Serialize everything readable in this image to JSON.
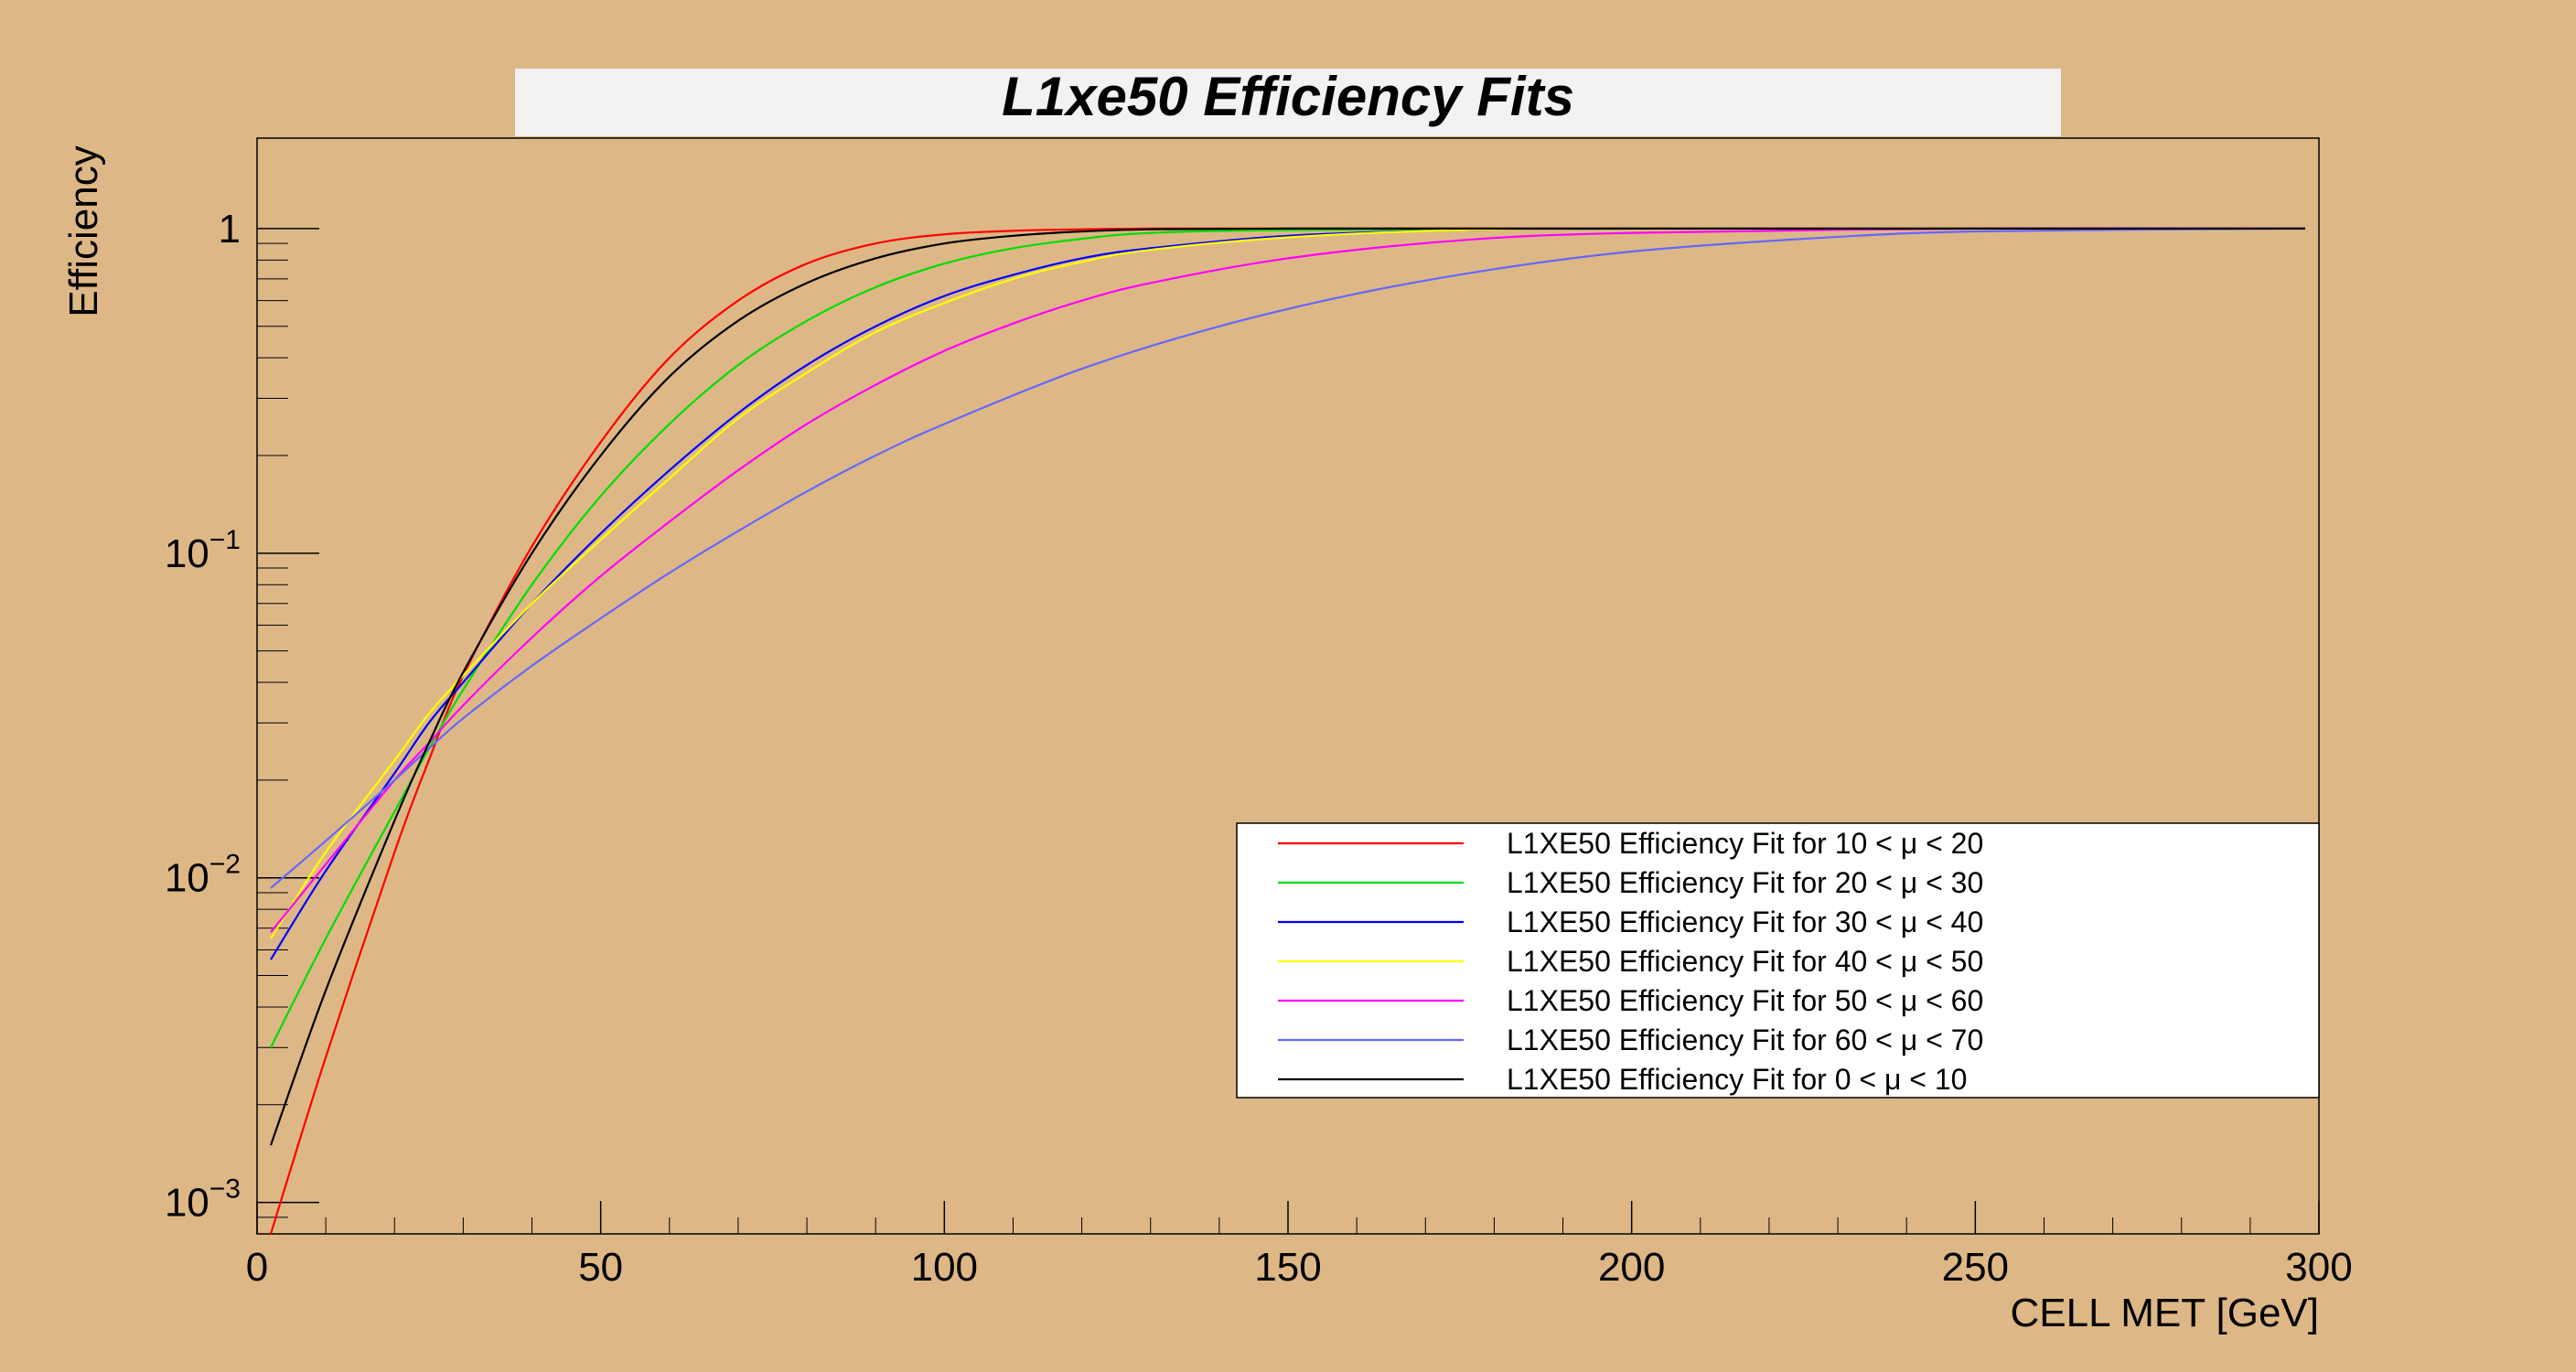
{
  "chart_data": {
    "type": "line",
    "title": "L1xe50 Efficiency Fits",
    "xlabel": "CELL MET [GeV]",
    "ylabel": "Efficiency",
    "xlim": [
      0,
      300
    ],
    "ylim": [
      0.0008,
      1.9
    ],
    "y_scale": "log",
    "x_ticks": [
      "0",
      "50",
      "100",
      "150",
      "200",
      "250",
      "300"
    ],
    "y_ticks": [
      {
        "value": 1,
        "base": "1",
        "exp": ""
      },
      {
        "value": 0.1,
        "base": "10",
        "exp": "−1"
      },
      {
        "value": 0.01,
        "base": "10",
        "exp": "−2"
      },
      {
        "value": 0.001,
        "base": "10",
        "exp": "−3"
      }
    ],
    "legend_position": "lower-right",
    "grid": false,
    "series": [
      {
        "name": "L1XE50 Efficiency Fit for 10 < μ < 20",
        "color": "#ff0000",
        "x": [
          2,
          10,
          20,
          25,
          30,
          40,
          50,
          60,
          70,
          80,
          90,
          100,
          110,
          120,
          130,
          150,
          200,
          250,
          298
        ],
        "y": [
          0.0008,
          0.0028,
          0.012,
          0.023,
          0.042,
          0.105,
          0.22,
          0.4,
          0.6,
          0.78,
          0.9,
          0.96,
          0.985,
          0.995,
          1,
          1,
          1,
          1,
          1
        ]
      },
      {
        "name": "L1XE50 Efficiency Fit for 20 < μ < 30",
        "color": "#00dd00",
        "x": [
          2,
          10,
          20,
          25,
          30,
          40,
          50,
          60,
          70,
          80,
          90,
          100,
          110,
          120,
          130,
          150,
          200,
          250,
          298
        ],
        "y": [
          0.003,
          0.0065,
          0.016,
          0.025,
          0.038,
          0.08,
          0.15,
          0.25,
          0.38,
          0.52,
          0.66,
          0.78,
          0.87,
          0.93,
          0.97,
          0.99,
          1,
          1,
          1
        ]
      },
      {
        "name": "L1XE50 Efficiency Fit for 30 < μ < 40",
        "color": "#0000ff",
        "x": [
          2,
          10,
          20,
          25,
          30,
          40,
          50,
          60,
          70,
          80,
          90,
          100,
          110,
          120,
          130,
          150,
          175,
          200,
          250,
          298
        ],
        "y": [
          0.0056,
          0.0105,
          0.021,
          0.03,
          0.04,
          0.07,
          0.115,
          0.18,
          0.27,
          0.38,
          0.5,
          0.62,
          0.72,
          0.81,
          0.87,
          0.95,
          0.99,
          1,
          1,
          1
        ]
      },
      {
        "name": "L1XE50 Efficiency Fit for 40 < μ < 50",
        "color": "#ffff00",
        "x": [
          2,
          10,
          20,
          25,
          30,
          40,
          50,
          60,
          70,
          80,
          90,
          100,
          110,
          120,
          130,
          150,
          175,
          200,
          250,
          298
        ],
        "y": [
          0.0065,
          0.012,
          0.023,
          0.032,
          0.042,
          0.07,
          0.11,
          0.17,
          0.26,
          0.36,
          0.48,
          0.59,
          0.7,
          0.79,
          0.86,
          0.94,
          0.99,
          1,
          1,
          1
        ]
      },
      {
        "name": "L1XE50 Efficiency Fit for 50 < μ < 60",
        "color": "#ff00ff",
        "x": [
          2,
          10,
          20,
          25,
          30,
          40,
          50,
          60,
          70,
          80,
          90,
          100,
          110,
          120,
          130,
          150,
          175,
          200,
          250,
          298
        ],
        "y": [
          0.0068,
          0.011,
          0.02,
          0.026,
          0.034,
          0.055,
          0.085,
          0.125,
          0.18,
          0.25,
          0.33,
          0.42,
          0.51,
          0.6,
          0.68,
          0.81,
          0.92,
          0.97,
          1,
          1
        ]
      },
      {
        "name": "L1XE50 Efficiency Fit for 60 < μ < 70",
        "color": "#6666ff",
        "x": [
          2,
          10,
          20,
          25,
          30,
          40,
          50,
          60,
          70,
          80,
          90,
          100,
          120,
          140,
          160,
          180,
          200,
          225,
          250,
          298
        ],
        "y": [
          0.0093,
          0.013,
          0.02,
          0.025,
          0.031,
          0.045,
          0.063,
          0.087,
          0.117,
          0.155,
          0.2,
          0.25,
          0.37,
          0.5,
          0.63,
          0.75,
          0.85,
          0.93,
          0.98,
          1
        ]
      },
      {
        "name": "L1XE50 Efficiency Fit for 0 < μ < 10",
        "color": "#000000",
        "x": [
          2,
          10,
          20,
          25,
          30,
          40,
          50,
          60,
          70,
          80,
          90,
          100,
          110,
          120,
          130,
          150,
          200,
          250,
          298
        ],
        "y": [
          0.0015,
          0.0045,
          0.015,
          0.026,
          0.043,
          0.1,
          0.2,
          0.35,
          0.52,
          0.68,
          0.81,
          0.9,
          0.95,
          0.98,
          0.995,
          1,
          1,
          1,
          1
        ]
      }
    ]
  }
}
